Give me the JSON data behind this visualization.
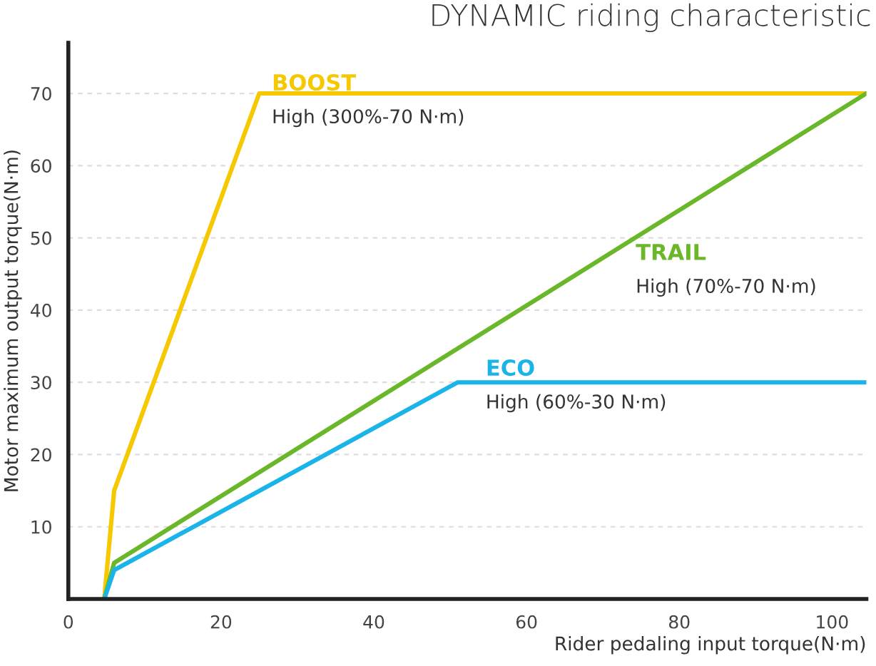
{
  "chart_data": {
    "type": "line",
    "title": "DYNAMIC riding characteristic",
    "xlabel": "Rider pedaling input torque(N·m)",
    "ylabel": "Motor maximum output torque(N·m)",
    "series": [
      {
        "name": "BOOST",
        "color": "#f5c800",
        "x": [
          4.7,
          6,
          25,
          104.5
        ],
        "values": [
          0,
          15,
          70,
          70
        ]
      },
      {
        "name": "TRAIL",
        "color": "#6ab82a",
        "x": [
          4.7,
          6,
          104.5
        ],
        "values": [
          0,
          5,
          70
        ]
      },
      {
        "name": "ECO",
        "color": "#1ab4e8",
        "x": [
          4.7,
          6,
          51,
          104.5
        ],
        "values": [
          0,
          4,
          30,
          30
        ]
      }
    ],
    "annotations": [
      "High (300%-70 N·m)",
      "High (70%-70 N·m)",
      "High (60%-30 N·m)"
    ],
    "xlim": [
      0,
      104.5
    ],
    "ylim": [
      0,
      77
    ],
    "xticks": [
      0,
      20,
      40,
      60,
      80,
      100
    ],
    "yticks": [
      10,
      20,
      30,
      40,
      50,
      60,
      70
    ],
    "grid": "y",
    "legend": false,
    "marker": "none",
    "line_style": "solid"
  }
}
